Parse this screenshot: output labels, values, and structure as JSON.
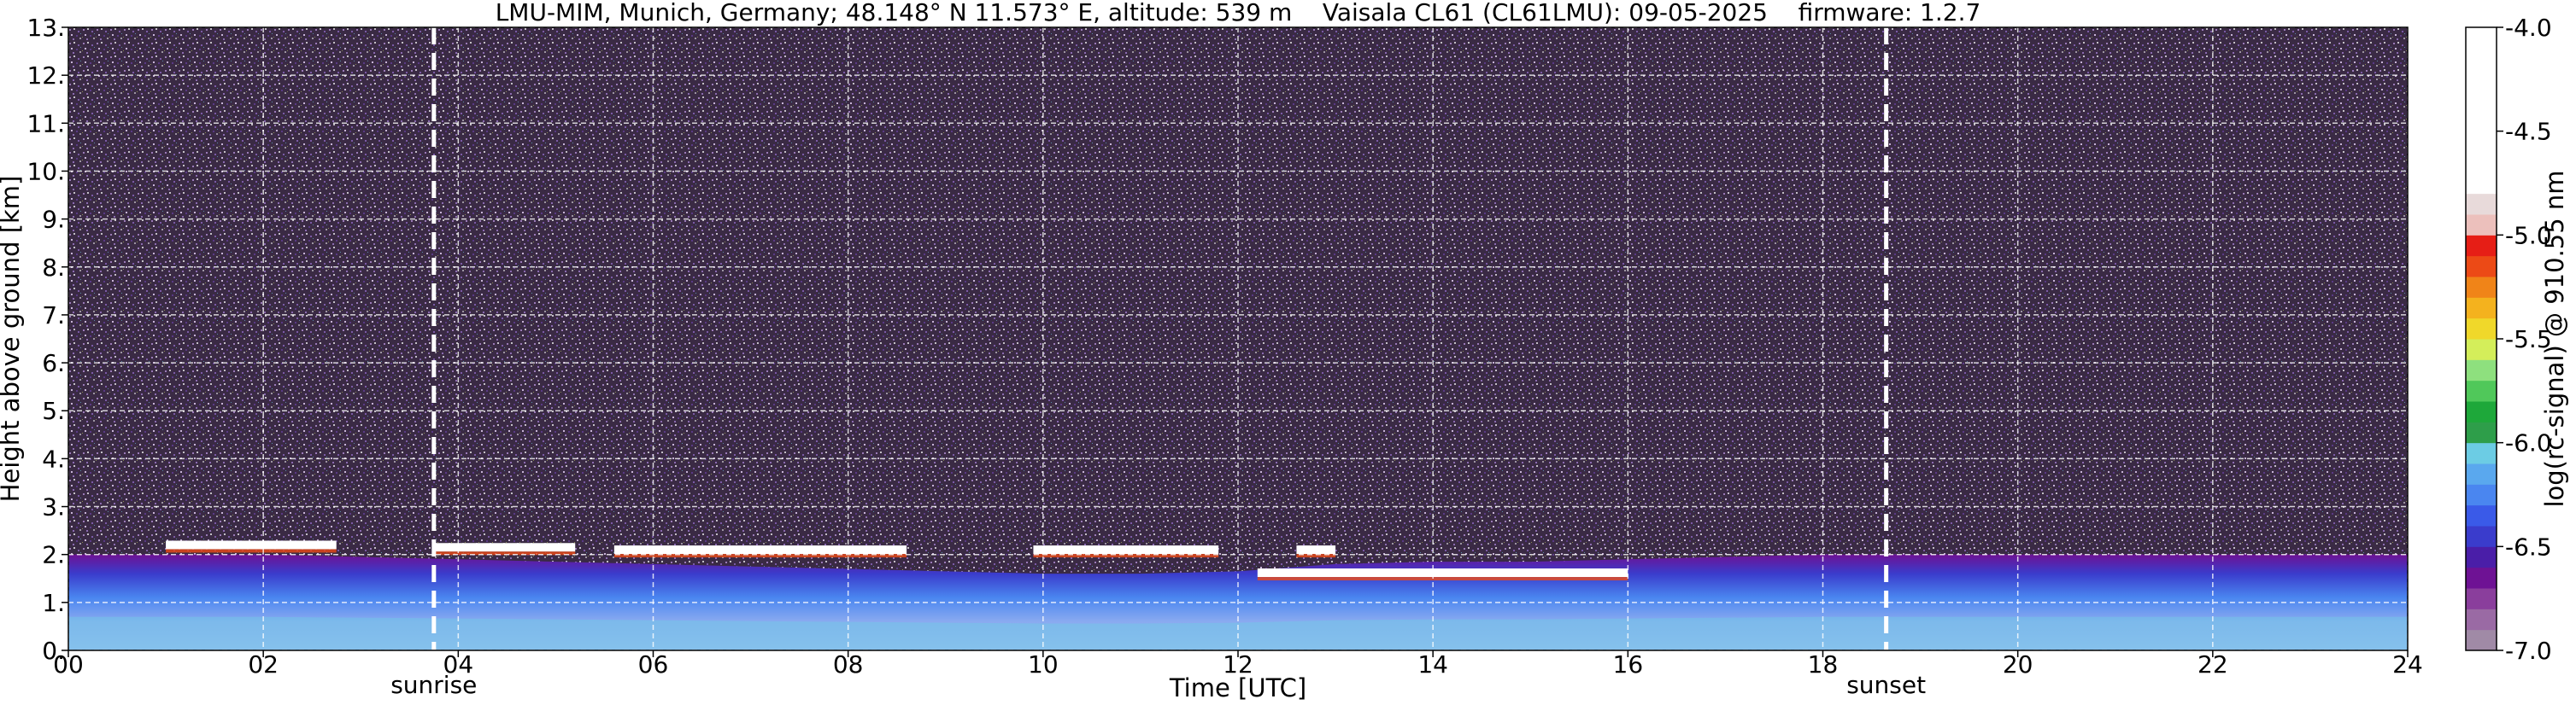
{
  "chart_data": {
    "type": "heatmap",
    "title": "LMU-MIM, Munich, Germany; 48.148° N 11.573° E, altitude: 539 m    Vaisala CL61 (CL61LMU): 09-05-2025    firmware: 1.2.7",
    "xlabel": "Time [UTC]",
    "ylabel": "Height above ground [km]",
    "xlim": [
      0,
      24
    ],
    "ylim": [
      0,
      13
    ],
    "x_ticks": [
      0,
      2,
      4,
      6,
      8,
      10,
      12,
      14,
      16,
      18,
      20,
      22,
      24
    ],
    "x_tick_labels": [
      "00",
      "02",
      "04",
      "06",
      "08",
      "10",
      "12",
      "14",
      "16",
      "18",
      "20",
      "22",
      "24"
    ],
    "y_ticks": [
      0,
      1,
      2,
      3,
      4,
      5,
      6,
      7,
      8,
      9,
      10,
      11,
      12,
      13
    ],
    "y_tick_labels": [
      "0.",
      "1.",
      "2.",
      "3.",
      "4.",
      "5.",
      "6.",
      "7.",
      "8.",
      "9.",
      "10.",
      "11.",
      "12.",
      "13."
    ],
    "grid": true,
    "markers": [
      {
        "label": "sunrise",
        "x": 3.75
      },
      {
        "label": "sunset",
        "x": 18.65
      }
    ],
    "colorbar": {
      "label": "log(rc-signal) @ 910.55 nm",
      "range": [
        -7.0,
        -4.0
      ],
      "ticks": [
        -4.0,
        -4.5,
        -5.0,
        -5.5,
        -6.0,
        -6.5,
        -7.0
      ],
      "tick_labels": [
        "-4.0",
        "-4.5",
        "-5.0",
        "-5.5",
        "-6.0",
        "-6.5",
        "-7.0"
      ],
      "colors": [
        "#a08aa6",
        "#9a6aa4",
        "#8a3e9c",
        "#6e1294",
        "#4a1ea8",
        "#3a3ccc",
        "#3a5ae8",
        "#4a86f0",
        "#5aa8ee",
        "#6ccce4",
        "#2e9e4a",
        "#1ea83a",
        "#50c85a",
        "#8ee07e",
        "#d4ee5a",
        "#f0d82a",
        "#f4b21e",
        "#f08418",
        "#ec4a16",
        "#e61e16",
        "#ecc0bc",
        "#e8dada",
        "#ffffff"
      ]
    },
    "layers": {
      "boundary_layer_top_km": [
        2.0,
        2.0,
        2.0,
        1.95,
        1.9,
        1.85,
        1.8,
        1.75,
        1.7,
        1.65,
        1.6,
        1.6,
        1.65,
        1.8,
        1.85,
        1.85,
        1.9,
        1.95,
        2.0,
        2.0,
        2.0,
        2.0,
        2.0,
        2.0,
        2.0
      ],
      "cloud_segments": [
        {
          "x0": 1.0,
          "x1": 2.75,
          "base_km": 2.2
        },
        {
          "x0": 3.75,
          "x1": 5.2,
          "base_km": 2.15
        },
        {
          "x0": 5.6,
          "x1": 8.6,
          "base_km": 2.1
        },
        {
          "x0": 9.9,
          "x1": 11.8,
          "base_km": 2.1
        },
        {
          "x0": 12.6,
          "x1": 13.0,
          "base_km": 2.1
        },
        {
          "x0": 12.2,
          "x1": 16.0,
          "base_km": 1.62
        }
      ]
    }
  }
}
